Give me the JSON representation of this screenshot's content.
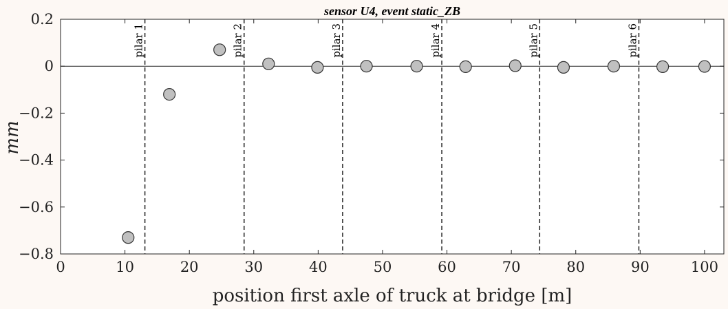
{
  "chart_data": {
    "type": "scatter",
    "title": "sensor U4, event static_ZB",
    "xlabel": "position first axle of truck at bridge [m]",
    "ylabel": "mm",
    "xlim": [
      0,
      103
    ],
    "ylim": [
      -0.8,
      0.2
    ],
    "x_ticks": [
      0,
      10,
      20,
      30,
      40,
      50,
      60,
      70,
      80,
      90,
      100
    ],
    "y_ticks": [
      0.2,
      0,
      -0.2,
      -0.4,
      -0.6,
      -0.8
    ],
    "y_tick_labels": [
      "0.2",
      "0",
      "−0.2",
      "−0.4",
      "−0.6",
      "−0.8"
    ],
    "grid": false,
    "zero_line": true,
    "marker_color": "#c0c0c0",
    "marker_edge_color": "#333333",
    "points": [
      {
        "x": 10.5,
        "y": -0.73
      },
      {
        "x": 16.9,
        "y": -0.12
      },
      {
        "x": 24.7,
        "y": 0.07
      },
      {
        "x": 32.3,
        "y": 0.01
      },
      {
        "x": 39.9,
        "y": -0.005
      },
      {
        "x": 47.5,
        "y": 0.0
      },
      {
        "x": 55.3,
        "y": 0.0
      },
      {
        "x": 62.9,
        "y": -0.002
      },
      {
        "x": 70.6,
        "y": 0.002
      },
      {
        "x": 78.1,
        "y": -0.005
      },
      {
        "x": 85.9,
        "y": 0.0
      },
      {
        "x": 93.5,
        "y": -0.002
      },
      {
        "x": 100.0,
        "y": -0.001
      }
    ],
    "vlines": [
      {
        "x": 13.1,
        "label": "pilar 1"
      },
      {
        "x": 28.5,
        "label": "pilar 2"
      },
      {
        "x": 43.8,
        "label": "pilar 3"
      },
      {
        "x": 59.2,
        "label": "pilar 4"
      },
      {
        "x": 74.4,
        "label": "pilar 5"
      },
      {
        "x": 89.8,
        "label": "pilar 6"
      }
    ]
  }
}
